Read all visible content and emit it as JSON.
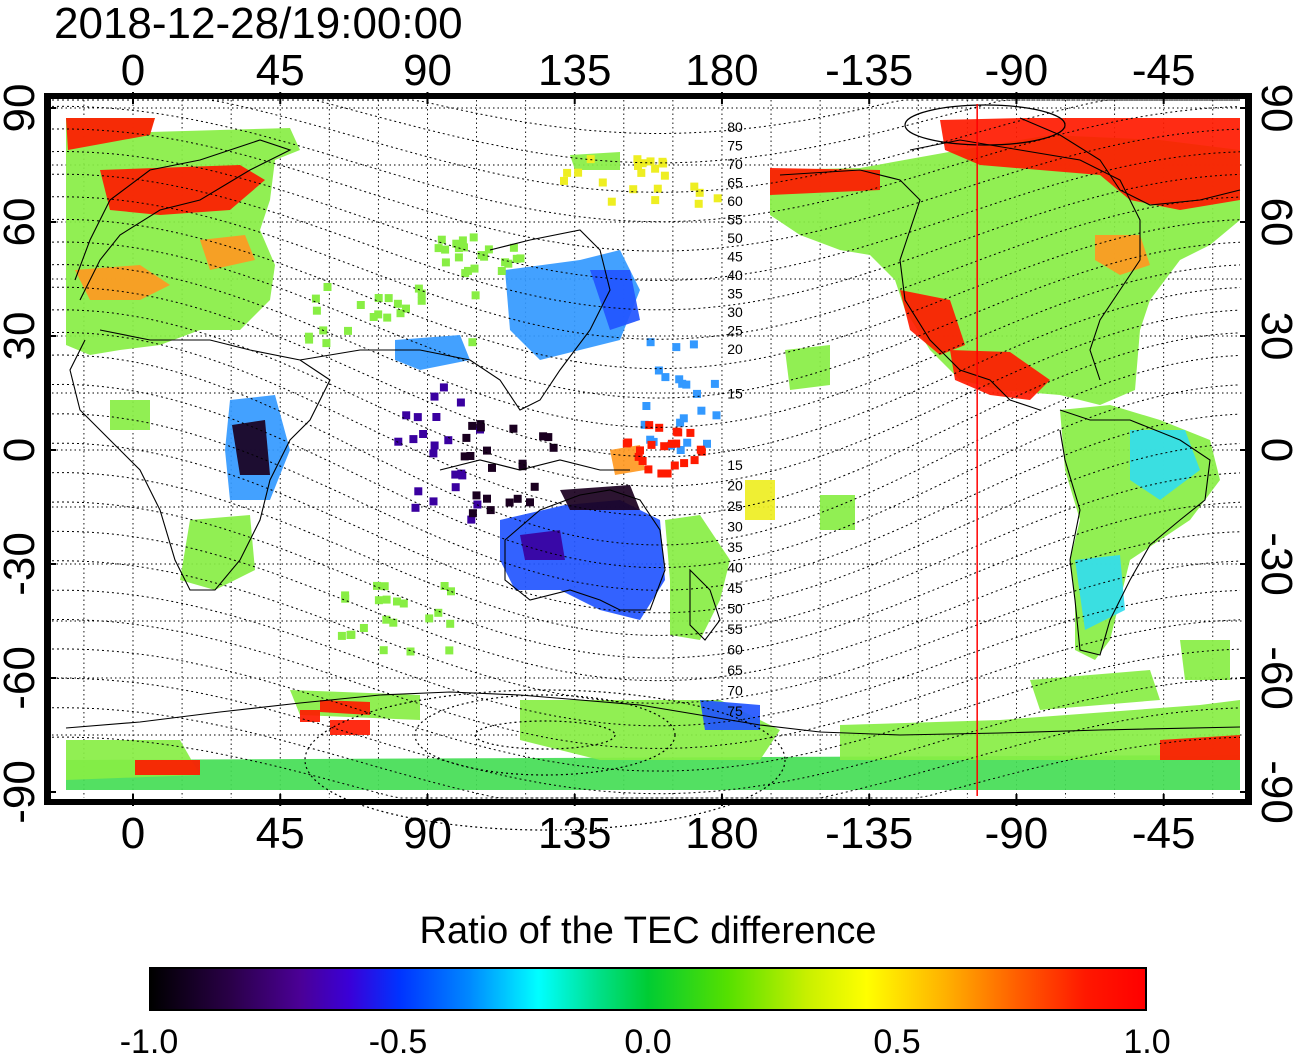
{
  "timestamp": "2018-12-28/19:00:00",
  "map": {
    "lon_top_labels": [
      "0",
      "45",
      "90",
      "135",
      "180",
      "-135",
      "-90",
      "-45"
    ],
    "lon_bottom_labels": [
      "0",
      "45",
      "90",
      "135",
      "180",
      "-135",
      "-90",
      "-45"
    ],
    "lat_left_labels": [
      "90",
      "60",
      "30",
      "0",
      "-30",
      "-60",
      "-90"
    ],
    "lat_right_labels": [
      "90",
      "60",
      "30",
      "0",
      "-30",
      "-60",
      "-90"
    ],
    "lon_tick_values": [
      0,
      45,
      90,
      135,
      180,
      -135,
      -90,
      -45
    ],
    "lat_tick_values": [
      90,
      60,
      30,
      0,
      -30,
      -60,
      -90
    ],
    "contour_labels_north": [
      "80",
      "75",
      "70",
      "65",
      "60",
      "55",
      "50",
      "45",
      "40",
      "35",
      "30",
      "25",
      "20",
      "15"
    ],
    "contour_labels_south": [
      "15",
      "20",
      "25",
      "30",
      "35",
      "40",
      "45",
      "50",
      "55",
      "60",
      "65",
      "70",
      "75"
    ],
    "meridian_marker_lon": -102,
    "meridian_marker_color": "#ff0000"
  },
  "colorbar": {
    "title": "Ratio of the TEC difference",
    "tick_labels": [
      "-1.0",
      "-0.5",
      "0.0",
      "0.5",
      "1.0"
    ],
    "range": [
      -1.0,
      1.0
    ]
  },
  "colors": {
    "ratio_-1.0": "#000000",
    "ratio_-0.5": "#0033ff",
    "ratio_0.0": "#00cc33",
    "ratio_0.5": "#ffff00",
    "ratio_1.0": "#ff0000"
  }
}
